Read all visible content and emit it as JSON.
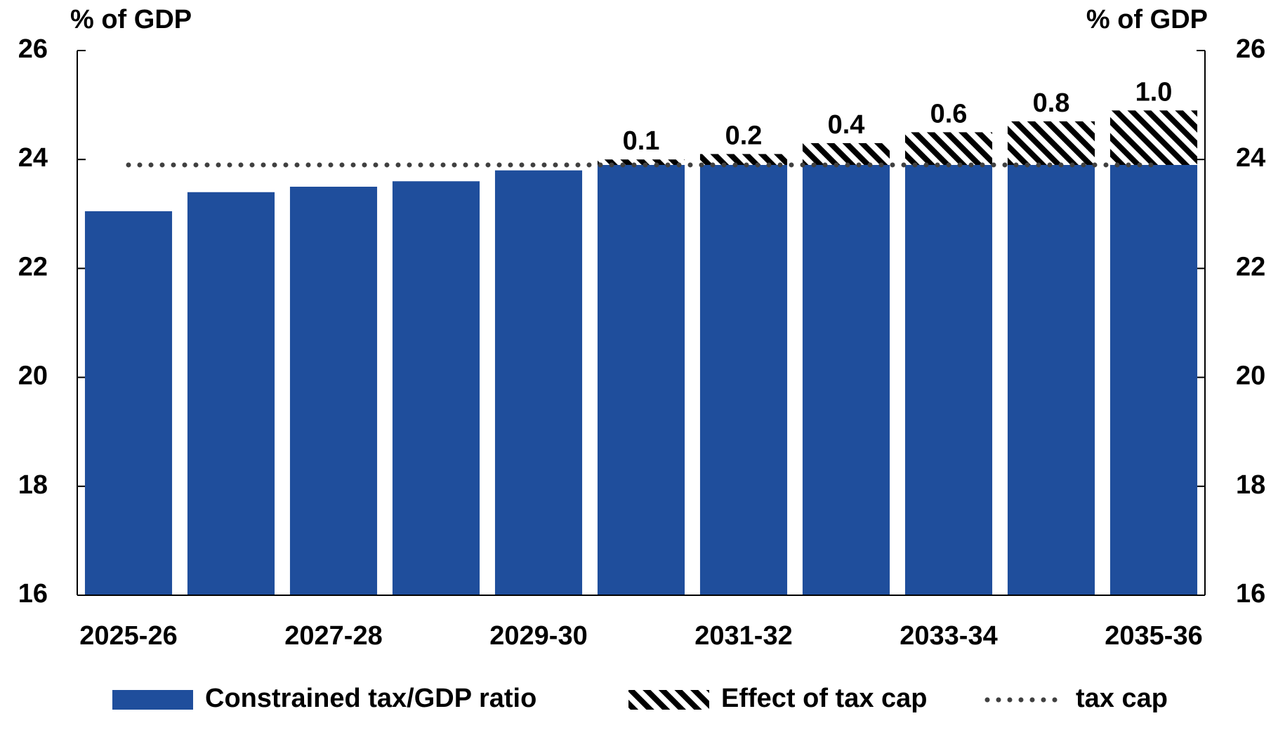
{
  "chart_data": {
    "type": "bar",
    "stacked": true,
    "y_label": "% of GDP",
    "y2_label": "% of GDP",
    "categories": [
      "2025-26",
      null,
      "2027-28",
      null,
      "2029-30",
      null,
      "2031-32",
      null,
      "2033-34",
      null,
      "2035-36"
    ],
    "series": [
      {
        "name": "Constrained tax/GDP ratio",
        "color": "#1f4e9c",
        "values": [
          23.05,
          23.4,
          23.5,
          23.6,
          23.8,
          23.9,
          23.9,
          23.9,
          23.9,
          23.9,
          23.9
        ]
      },
      {
        "name": "Effect of tax cap",
        "color": "#000000",
        "pattern": "hatch",
        "values": [
          null,
          null,
          null,
          null,
          null,
          0.1,
          0.2,
          0.4,
          0.6,
          0.8,
          1.0
        ],
        "value_labels": [
          null,
          null,
          null,
          null,
          null,
          "0.1",
          "0.2",
          "0.4",
          "0.6",
          "0.8",
          "1.0"
        ]
      },
      {
        "name": "tax cap",
        "color": "#404040",
        "type": "line",
        "style": "dotted",
        "values": [
          23.9,
          23.9,
          23.9,
          23.9,
          23.9,
          23.9,
          23.9,
          23.9,
          23.9,
          23.9,
          23.9
        ]
      }
    ],
    "ylim": [
      16,
      26
    ],
    "yticks": [
      16,
      18,
      20,
      22,
      24,
      26
    ],
    "y2lim": [
      16,
      26
    ],
    "y2ticks": [
      16,
      18,
      20,
      22,
      24,
      26
    ],
    "grid": false,
    "legend": "bottom"
  }
}
